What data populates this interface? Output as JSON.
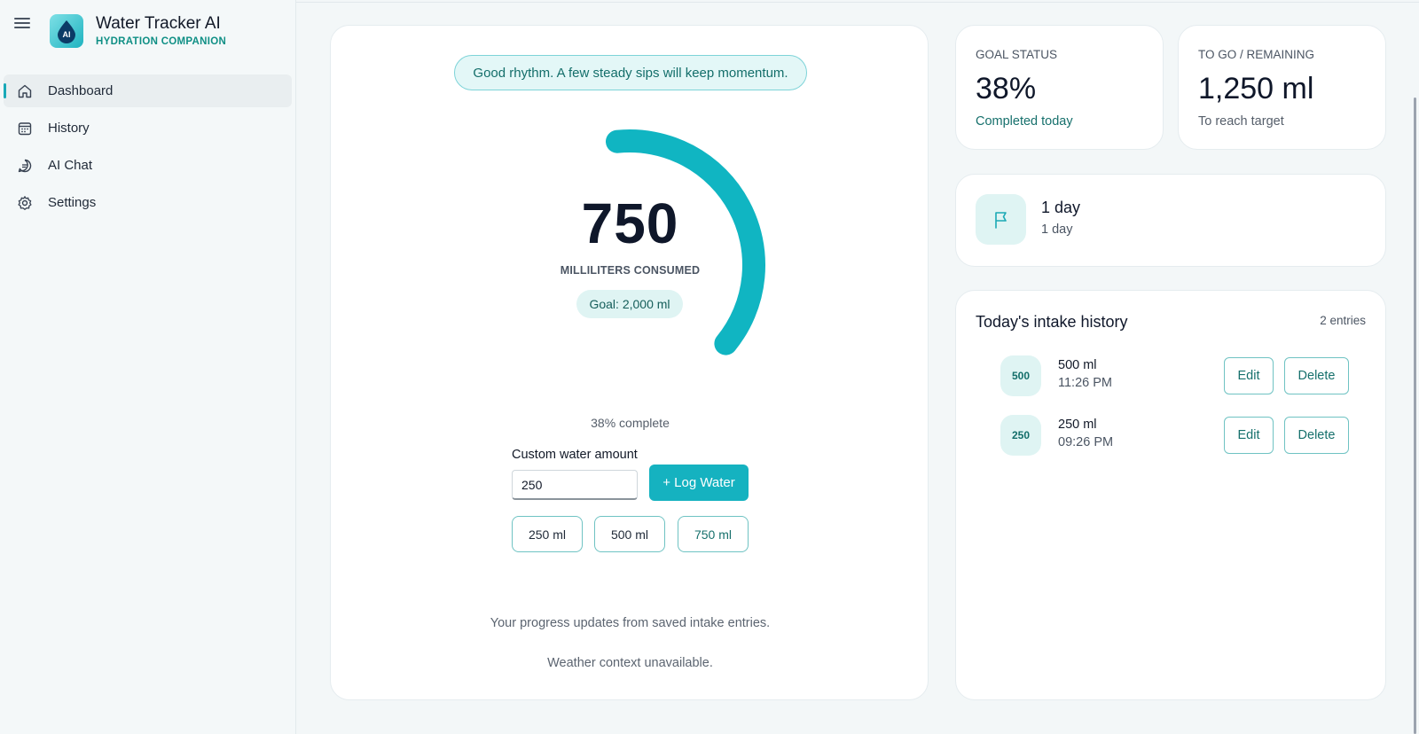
{
  "app": {
    "title": "Water Tracker AI",
    "subtitle": "HYDRATION COMPANION",
    "logo_text": "AI"
  },
  "sidebar": {
    "items": [
      {
        "label": "Dashboard",
        "icon": "home-icon",
        "active": true
      },
      {
        "label": "History",
        "icon": "calendar-icon",
        "active": false
      },
      {
        "label": "AI Chat",
        "icon": "chat-icon",
        "active": false
      },
      {
        "label": "Settings",
        "icon": "gear-icon",
        "active": false
      }
    ]
  },
  "main": {
    "tip": "Good rhythm. A few steady sips will keep momentum.",
    "consumed_value": "750",
    "consumed_label": "MILLILITERS CONSUMED",
    "goal_text": "Goal: 2,000 ml",
    "progress_fraction": 0.375,
    "progress_text": "38% complete",
    "custom_label": "Custom water amount",
    "custom_value": "250",
    "log_button": "+ Log Water",
    "quick_amounts": [
      "250 ml",
      "500 ml",
      "750 ml"
    ],
    "footer_progress": "Your progress updates from saved intake entries.",
    "footer_weather": "Weather context unavailable."
  },
  "goal_status": {
    "label": "GOAL STATUS",
    "value": "38%",
    "sub": "Completed today"
  },
  "remaining": {
    "label": "TO GO / REMAINING",
    "value": "1,250 ml",
    "sub": "To reach target"
  },
  "streak": {
    "title": "1 day",
    "sub": "1 day"
  },
  "history": {
    "title": "Today's intake history",
    "count": "2 entries",
    "entries": [
      {
        "badge": "500",
        "amount": "500 ml",
        "time": "11:26 PM",
        "edit": "Edit",
        "delete": "Delete"
      },
      {
        "badge": "250",
        "amount": "250 ml",
        "time": "09:26 PM",
        "edit": "Edit",
        "delete": "Delete"
      }
    ]
  },
  "colors": {
    "accent": "#15b2c0",
    "teal_text": "#136e6a",
    "background": "#f3f7f8"
  }
}
